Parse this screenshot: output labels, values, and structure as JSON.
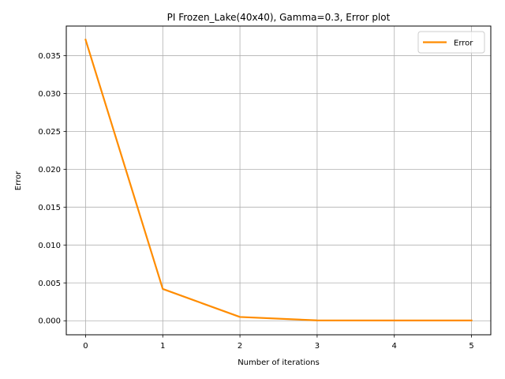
{
  "chart_data": {
    "type": "line",
    "title": "PI Frozen_Lake(40x40), Gamma=0.3, Error plot",
    "xlabel": "Number of iterations",
    "ylabel": "Error",
    "x": [
      0,
      1,
      2,
      3,
      4,
      5
    ],
    "series": [
      {
        "name": "Error",
        "color": "#ff8c00",
        "values": [
          0.0371,
          0.0042,
          0.0005,
          5e-05,
          4e-05,
          4e-05
        ]
      }
    ],
    "xlim": [
      -0.25,
      5.25
    ],
    "ylim": [
      -0.00185,
      0.0389
    ],
    "xticks": [
      0,
      1,
      2,
      3,
      4,
      5
    ],
    "xtick_labels": [
      "0",
      "1",
      "2",
      "3",
      "4",
      "5"
    ],
    "yticks": [
      0.0,
      0.005,
      0.01,
      0.015,
      0.02,
      0.025,
      0.03,
      0.035
    ],
    "ytick_labels": [
      "0.000",
      "0.005",
      "0.010",
      "0.015",
      "0.020",
      "0.025",
      "0.030",
      "0.035"
    ],
    "grid": true,
    "legend_position": "top-right"
  }
}
